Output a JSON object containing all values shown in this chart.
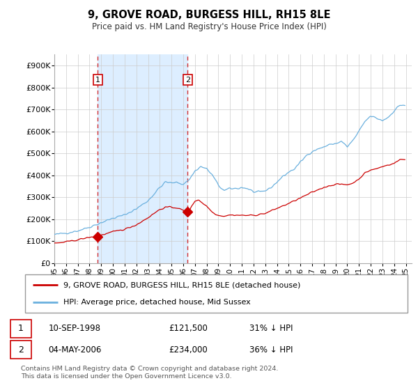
{
  "title": "9, GROVE ROAD, BURGESS HILL, RH15 8LE",
  "subtitle": "Price paid vs. HM Land Registry's House Price Index (HPI)",
  "legend_line1": "9, GROVE ROAD, BURGESS HILL, RH15 8LE (detached house)",
  "legend_line2": "HPI: Average price, detached house, Mid Sussex",
  "transaction1_date": "10-SEP-1998",
  "transaction1_price": "£121,500",
  "transaction1_hpi": "31% ↓ HPI",
  "transaction2_date": "04-MAY-2006",
  "transaction2_price": "£234,000",
  "transaction2_hpi": "36% ↓ HPI",
  "footnote": "Contains HM Land Registry data © Crown copyright and database right 2024.\nThis data is licensed under the Open Government Licence v3.0.",
  "hpi_color": "#6ab0de",
  "price_color": "#cc0000",
  "vline_color": "#cc0000",
  "shade_color": "#ddeeff",
  "ylim": [
    0,
    950000
  ],
  "yticks": [
    0,
    100000,
    200000,
    300000,
    400000,
    500000,
    600000,
    700000,
    800000,
    900000
  ],
  "ytick_labels": [
    "£0",
    "£100K",
    "£200K",
    "£300K",
    "£400K",
    "£500K",
    "£600K",
    "£700K",
    "£800K",
    "£900K"
  ],
  "transaction1_x": 1998.7,
  "transaction1_y": 121500,
  "transaction2_x": 2006.37,
  "transaction2_y": 234000,
  "xlim_start": 1995.0,
  "xlim_end": 2025.5,
  "hatch_start": 2024.5,
  "xtick_years": [
    1995,
    1996,
    1997,
    1998,
    1999,
    2000,
    2001,
    2002,
    2003,
    2004,
    2005,
    2006,
    2007,
    2008,
    2009,
    2010,
    2011,
    2012,
    2013,
    2014,
    2015,
    2016,
    2017,
    2018,
    2019,
    2020,
    2021,
    2022,
    2023,
    2024,
    2025
  ]
}
